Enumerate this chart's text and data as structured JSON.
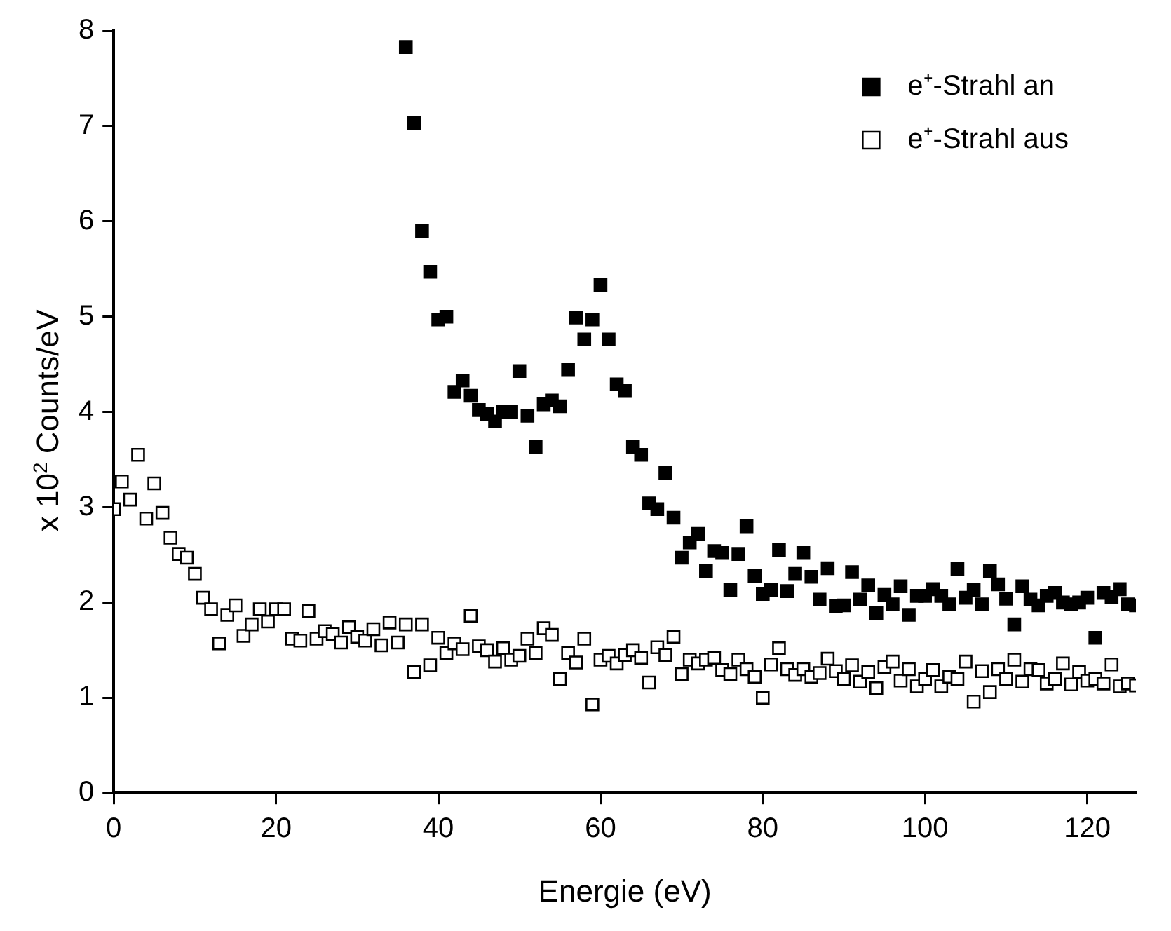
{
  "chart_data": {
    "type": "scatter",
    "xlabel": "Energie (eV)",
    "ylabel": "x 10$^{2}$ Counts/eV",
    "xlim": [
      0,
      126
    ],
    "xticks": [
      0,
      20,
      40,
      60,
      80,
      100,
      120
    ],
    "ylim": [
      0,
      8
    ],
    "yticks": [
      0,
      1,
      2,
      3,
      4,
      5,
      6,
      7,
      8
    ],
    "grid": false,
    "legend": "top right",
    "marker": "square",
    "series": [
      {
        "name": "e⁺-Strahl an",
        "color": "#000000",
        "x": [
          36,
          37,
          38,
          39,
          40,
          41,
          42,
          43,
          44,
          45,
          46,
          47,
          48,
          49,
          50,
          51,
          52,
          53,
          54,
          55,
          56,
          57,
          58,
          59,
          60,
          61,
          62,
          63,
          64,
          65,
          66,
          67,
          68,
          69,
          70,
          71,
          72,
          73,
          74,
          75,
          76,
          77,
          78,
          79,
          80,
          81,
          82,
          83,
          84,
          85,
          86,
          87,
          88,
          89,
          90,
          91,
          92,
          93,
          94,
          95,
          96,
          97,
          98,
          99,
          100,
          101,
          102,
          103,
          104,
          105,
          106,
          107,
          108,
          109,
          110,
          111,
          112,
          113,
          114,
          115,
          116,
          117,
          118,
          119,
          120,
          121,
          122,
          123,
          124,
          125,
          126
        ],
        "values": [
          7.83,
          7.03,
          5.9,
          5.47,
          4.97,
          5.0,
          4.21,
          4.33,
          4.17,
          4.02,
          3.98,
          3.9,
          4.0,
          4.0,
          4.43,
          3.96,
          3.63,
          4.08,
          4.12,
          4.06,
          4.44,
          4.99,
          4.76,
          4.97,
          5.33,
          4.76,
          4.29,
          4.22,
          3.63,
          3.55,
          3.04,
          2.98,
          3.36,
          2.89,
          2.47,
          2.63,
          2.72,
          2.33,
          2.54,
          2.52,
          2.13,
          2.51,
          2.8,
          2.28,
          2.09,
          2.13,
          2.55,
          2.12,
          2.3,
          2.52,
          2.27,
          2.03,
          2.36,
          1.96,
          1.97,
          2.32,
          2.03,
          2.18,
          1.89,
          2.08,
          1.98,
          2.17,
          1.87,
          2.07,
          2.07,
          2.14,
          2.07,
          1.98,
          2.35,
          2.05,
          2.13,
          1.98,
          2.33,
          2.19,
          2.04,
          1.77,
          2.17,
          2.03,
          1.97,
          2.07,
          2.1,
          2.0,
          1.98,
          2.0,
          2.05,
          1.63,
          2.1,
          2.06,
          2.14,
          1.98,
          1.97
        ]
      },
      {
        "name": "e⁺-Strahl aus",
        "color": "#ffffff",
        "x": [
          0,
          1,
          2,
          3,
          4,
          5,
          6,
          7,
          8,
          9,
          10,
          11,
          12,
          13,
          14,
          15,
          16,
          17,
          18,
          19,
          20,
          21,
          22,
          23,
          24,
          25,
          26,
          27,
          28,
          29,
          30,
          31,
          32,
          33,
          34,
          35,
          36,
          37,
          38,
          39,
          40,
          41,
          42,
          43,
          44,
          45,
          46,
          47,
          48,
          49,
          50,
          51,
          52,
          53,
          54,
          55,
          56,
          57,
          58,
          59,
          60,
          61,
          62,
          63,
          64,
          65,
          66,
          67,
          68,
          69,
          70,
          71,
          72,
          73,
          74,
          75,
          76,
          77,
          78,
          79,
          80,
          81,
          82,
          83,
          84,
          85,
          86,
          87,
          88,
          89,
          90,
          91,
          92,
          93,
          94,
          95,
          96,
          97,
          98,
          99,
          100,
          101,
          102,
          103,
          104,
          105,
          106,
          107,
          108,
          109,
          110,
          111,
          112,
          113,
          114,
          115,
          116,
          117,
          118,
          119,
          120,
          121,
          122,
          123,
          124,
          125,
          126
        ],
        "values": [
          2.98,
          3.27,
          3.08,
          3.55,
          2.88,
          3.25,
          2.94,
          2.68,
          2.51,
          2.47,
          2.3,
          2.05,
          1.93,
          1.57,
          1.87,
          1.97,
          1.65,
          1.77,
          1.93,
          1.8,
          1.93,
          1.93,
          1.62,
          1.6,
          1.91,
          1.62,
          1.7,
          1.67,
          1.58,
          1.74,
          1.64,
          1.6,
          1.72,
          1.55,
          1.79,
          1.58,
          1.77,
          1.27,
          1.77,
          1.34,
          1.63,
          1.47,
          1.57,
          1.51,
          1.86,
          1.54,
          1.5,
          1.38,
          1.52,
          1.4,
          1.44,
          1.62,
          1.47,
          1.73,
          1.66,
          1.2,
          1.47,
          1.37,
          1.62,
          0.93,
          1.4,
          1.44,
          1.36,
          1.45,
          1.5,
          1.42,
          1.16,
          1.53,
          1.45,
          1.64,
          1.25,
          1.4,
          1.36,
          1.4,
          1.42,
          1.29,
          1.25,
          1.4,
          1.3,
          1.22,
          1.0,
          1.35,
          1.52,
          1.3,
          1.24,
          1.3,
          1.22,
          1.26,
          1.41,
          1.28,
          1.2,
          1.34,
          1.17,
          1.27,
          1.1,
          1.32,
          1.38,
          1.18,
          1.3,
          1.12,
          1.2,
          1.29,
          1.12,
          1.22,
          1.2,
          1.38,
          0.96,
          1.28,
          1.06,
          1.3,
          1.2,
          1.4,
          1.17,
          1.3,
          1.29,
          1.15,
          1.2,
          1.36,
          1.14,
          1.27,
          1.18,
          1.2,
          1.15,
          1.35,
          1.12,
          1.15,
          1.13
        ]
      }
    ]
  }
}
